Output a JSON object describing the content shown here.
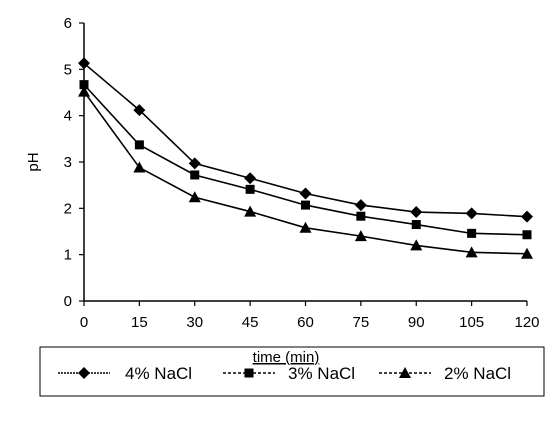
{
  "chart_data": {
    "type": "line",
    "xlabel": "time (min)",
    "ylabel": "pH",
    "x": [
      0,
      15,
      30,
      45,
      60,
      75,
      90,
      105,
      120
    ],
    "xlim": [
      0,
      120
    ],
    "ylim": [
      0,
      6
    ],
    "yticks": [
      0,
      1,
      2,
      3,
      4,
      5,
      6
    ],
    "grid": false,
    "legend_position": "bottom",
    "series": [
      {
        "name": "4% NaCl",
        "marker": "diamond",
        "values": [
          5.13,
          4.12,
          2.97,
          2.65,
          2.32,
          2.07,
          1.92,
          1.89,
          1.82
        ]
      },
      {
        "name": "3% NaCl",
        "marker": "square",
        "values": [
          4.67,
          3.37,
          2.72,
          2.41,
          2.07,
          1.83,
          1.65,
          1.46,
          1.43
        ]
      },
      {
        "name": "2% NaCl",
        "marker": "triangle",
        "values": [
          4.52,
          2.88,
          2.24,
          1.93,
          1.58,
          1.4,
          1.2,
          1.05,
          1.02
        ]
      }
    ]
  }
}
